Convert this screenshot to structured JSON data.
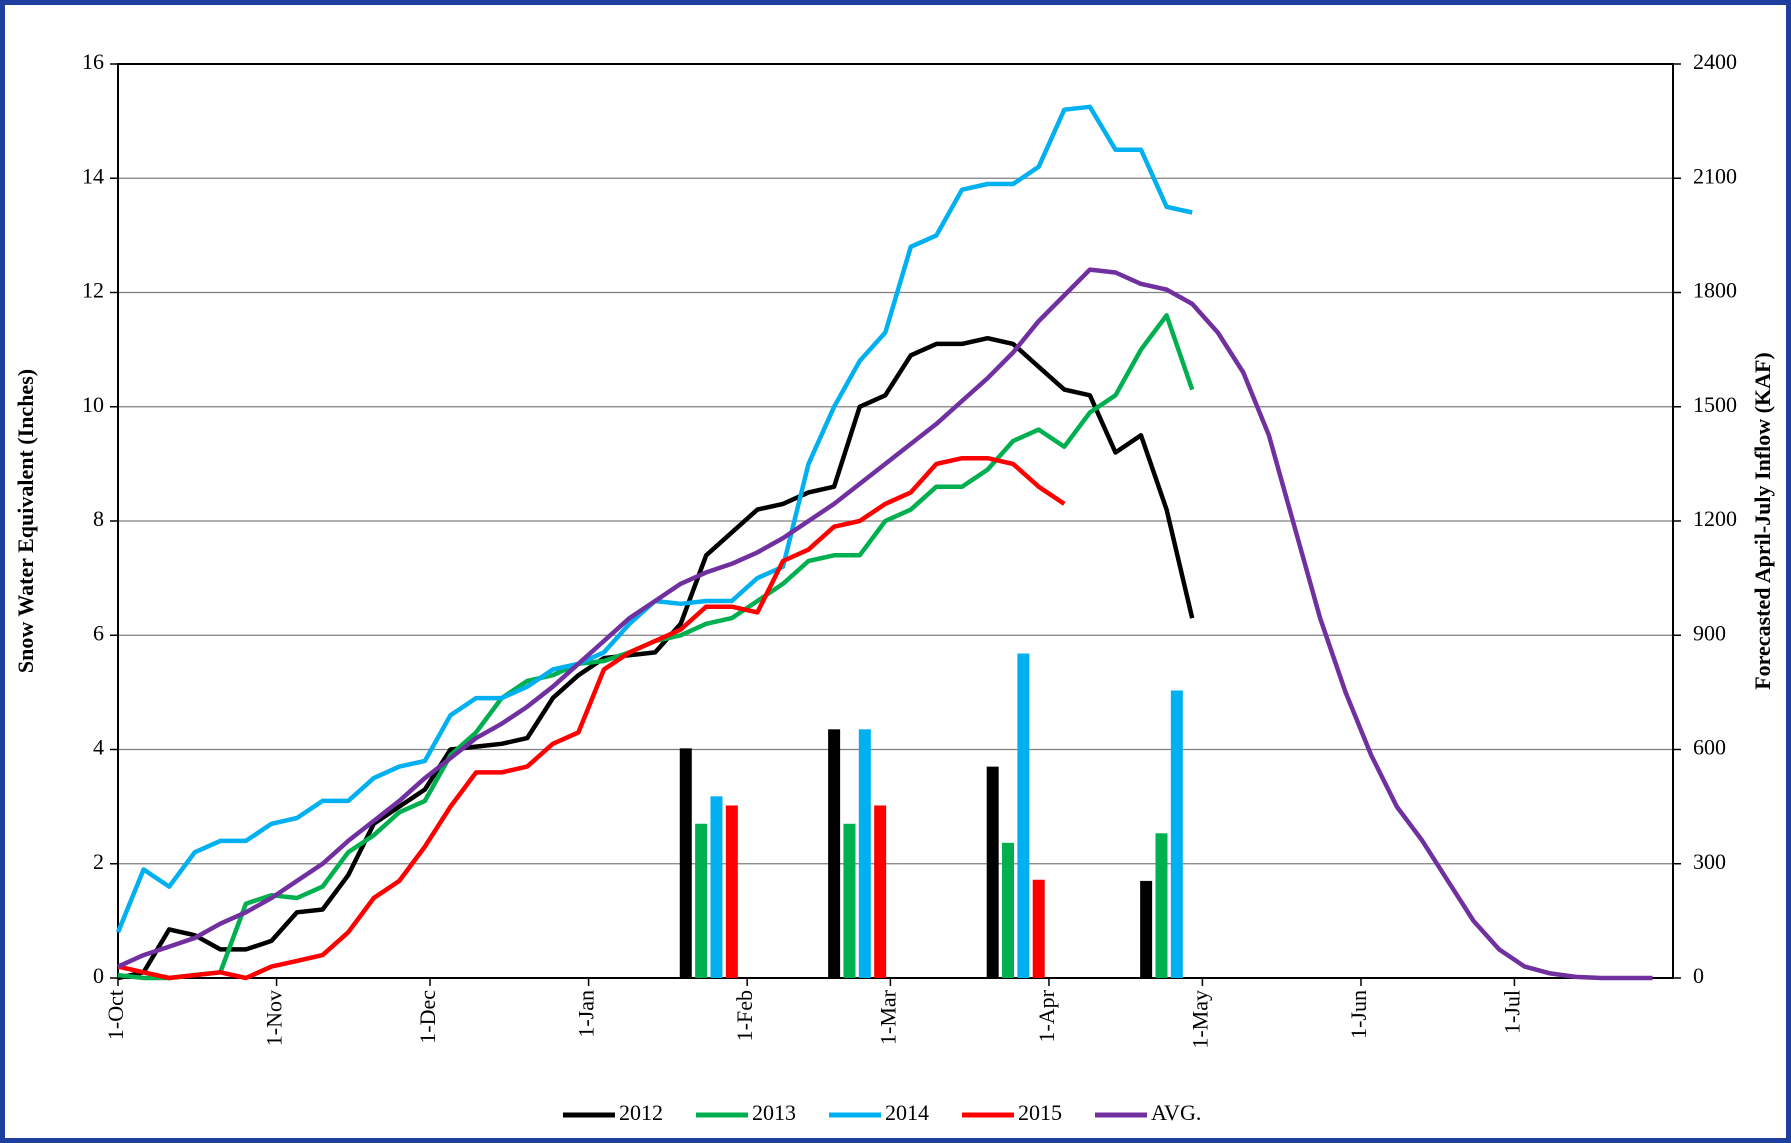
{
  "chart_data": {
    "type": "line",
    "ylabel": "Snow Water Equivalent (Inches)",
    "y2label": "Forecasted April-July Inflow (KAF)",
    "x": [
      0,
      5,
      10,
      15,
      20,
      25,
      30,
      35,
      40,
      45,
      50,
      55,
      60,
      65,
      70,
      75,
      80,
      85,
      90,
      95,
      100,
      105,
      110,
      115,
      120,
      125,
      130,
      135,
      140,
      145,
      150,
      155,
      160,
      165,
      170,
      175,
      180,
      185,
      190,
      195,
      200,
      205,
      210,
      215,
      220,
      225,
      230,
      235,
      240,
      245,
      250,
      255,
      260,
      265,
      270,
      275,
      280,
      285,
      290,
      295,
      300
    ],
    "xlim": [
      0,
      304
    ],
    "xticks": [
      {
        "value": 0,
        "label": "1-Oct"
      },
      {
        "value": 31,
        "label": "1-Nov"
      },
      {
        "value": 61,
        "label": "1-Dec"
      },
      {
        "value": 92,
        "label": "1-Jan"
      },
      {
        "value": 123,
        "label": "1-Feb"
      },
      {
        "value": 151,
        "label": "1-Mar"
      },
      {
        "value": 182,
        "label": "1-Apr"
      },
      {
        "value": 212,
        "label": "1-May"
      },
      {
        "value": 243,
        "label": "1-Jun"
      },
      {
        "value": 273,
        "label": "1-Jul"
      }
    ],
    "ylim": [
      0,
      16
    ],
    "yticks": [
      0,
      2,
      4,
      6,
      8,
      10,
      12,
      14,
      16
    ],
    "y2lim": [
      0,
      2400
    ],
    "y2ticks": [
      0,
      300,
      600,
      900,
      1200,
      1500,
      1800,
      2100,
      2400
    ],
    "grid": true,
    "legend": "bottom",
    "series": [
      {
        "name": "2012",
        "color": "#000000",
        "values": [
          0,
          0.1,
          0.85,
          0.75,
          0.5,
          0.5,
          0.65,
          1.15,
          1.2,
          1.8,
          2.7,
          3.0,
          3.3,
          4.0,
          4.05,
          4.1,
          4.2,
          4.9,
          5.3,
          5.6,
          5.65,
          5.7,
          6.2,
          7.4,
          7.8,
          8.2,
          8.3,
          8.5,
          8.6,
          10.0,
          10.2,
          10.9,
          11.1,
          11.1,
          11.2,
          11.1,
          10.7,
          10.3,
          10.2,
          9.2,
          9.5,
          8.2,
          6.3,
          null,
          null,
          null,
          null,
          null,
          null,
          null,
          null,
          null,
          null,
          null,
          null,
          null,
          null,
          null,
          null,
          null,
          null
        ],
        "bars": {
          "axis": "y2",
          "x": [
            111,
            140,
            171,
            201
          ],
          "values": [
            603,
            653,
            555,
            255
          ]
        }
      },
      {
        "name": "2013",
        "color": "#00b050",
        "values": [
          0.05,
          0,
          0,
          0.05,
          0.1,
          1.3,
          1.45,
          1.4,
          1.6,
          2.2,
          2.5,
          2.9,
          3.1,
          3.9,
          4.3,
          4.9,
          5.2,
          5.3,
          5.5,
          5.55,
          5.7,
          5.9,
          6.0,
          6.2,
          6.3,
          6.6,
          6.9,
          7.3,
          7.4,
          7.4,
          8.0,
          8.2,
          8.6,
          8.6,
          8.9,
          9.4,
          9.6,
          9.3,
          9.9,
          10.2,
          11.0,
          11.6,
          10.3,
          null,
          null,
          null,
          null,
          null,
          null,
          null,
          null,
          null,
          null,
          null,
          null,
          null,
          null,
          null,
          null,
          null,
          null
        ],
        "bars": {
          "axis": "y2",
          "x": [
            114,
            143,
            174,
            204
          ],
          "values": [
            405,
            405,
            355,
            380
          ]
        }
      },
      {
        "name": "2014",
        "color": "#00b0f0",
        "values": [
          0.8,
          1.9,
          1.6,
          2.2,
          2.4,
          2.4,
          2.7,
          2.8,
          3.1,
          3.1,
          3.5,
          3.7,
          3.8,
          4.6,
          4.9,
          4.9,
          5.1,
          5.4,
          5.5,
          5.7,
          6.2,
          6.6,
          6.55,
          6.6,
          6.6,
          7.0,
          7.2,
          9.0,
          10.0,
          10.8,
          11.3,
          12.8,
          13.0,
          13.8,
          13.9,
          13.9,
          14.2,
          15.2,
          15.25,
          14.5,
          14.5,
          13.5,
          13.4,
          null,
          null,
          null,
          null,
          null,
          null,
          null,
          null,
          null,
          null,
          null,
          null,
          null,
          null,
          null,
          null,
          null,
          null
        ],
        "bars": {
          "axis": "y2",
          "x": [
            117,
            146,
            177,
            207
          ],
          "values": [
            477,
            653,
            852,
            755
          ]
        }
      },
      {
        "name": "2015",
        "color": "#ff0000",
        "values": [
          0.2,
          0.1,
          0,
          0.05,
          0.1,
          0,
          0.2,
          0.3,
          0.4,
          0.8,
          1.4,
          1.7,
          2.3,
          3.0,
          3.6,
          3.6,
          3.7,
          4.1,
          4.3,
          5.4,
          5.7,
          5.9,
          6.1,
          6.5,
          6.5,
          6.4,
          7.3,
          7.5,
          7.9,
          8.0,
          8.3,
          8.5,
          9.0,
          9.1,
          9.1,
          9.0,
          8.6,
          8.3,
          null,
          null,
          null,
          null,
          null,
          null,
          null,
          null,
          null,
          null,
          null,
          null,
          null,
          null,
          null,
          null,
          null,
          null,
          null,
          null,
          null,
          null,
          null
        ],
        "bars": {
          "axis": "y2",
          "x": [
            120,
            149,
            180
          ],
          "values": [
            453,
            453,
            258
          ]
        }
      },
      {
        "name": "AVG.",
        "color": "#7030a0",
        "values": [
          0.2,
          0.4,
          0.55,
          0.7,
          0.95,
          1.15,
          1.4,
          1.7,
          2.0,
          2.4,
          2.75,
          3.1,
          3.5,
          3.85,
          4.2,
          4.45,
          4.75,
          5.1,
          5.5,
          5.9,
          6.3,
          6.6,
          6.9,
          7.1,
          7.25,
          7.45,
          7.7,
          8.0,
          8.3,
          8.65,
          9.0,
          9.35,
          9.7,
          10.1,
          10.5,
          10.95,
          11.5,
          11.95,
          12.4,
          12.35,
          12.15,
          12.05,
          11.8,
          11.3,
          10.6,
          9.5,
          7.9,
          6.3,
          5.0,
          3.9,
          3.0,
          2.4,
          1.7,
          1.0,
          0.5,
          0.2,
          0.08,
          0.02,
          0,
          0,
          0
        ]
      }
    ]
  }
}
